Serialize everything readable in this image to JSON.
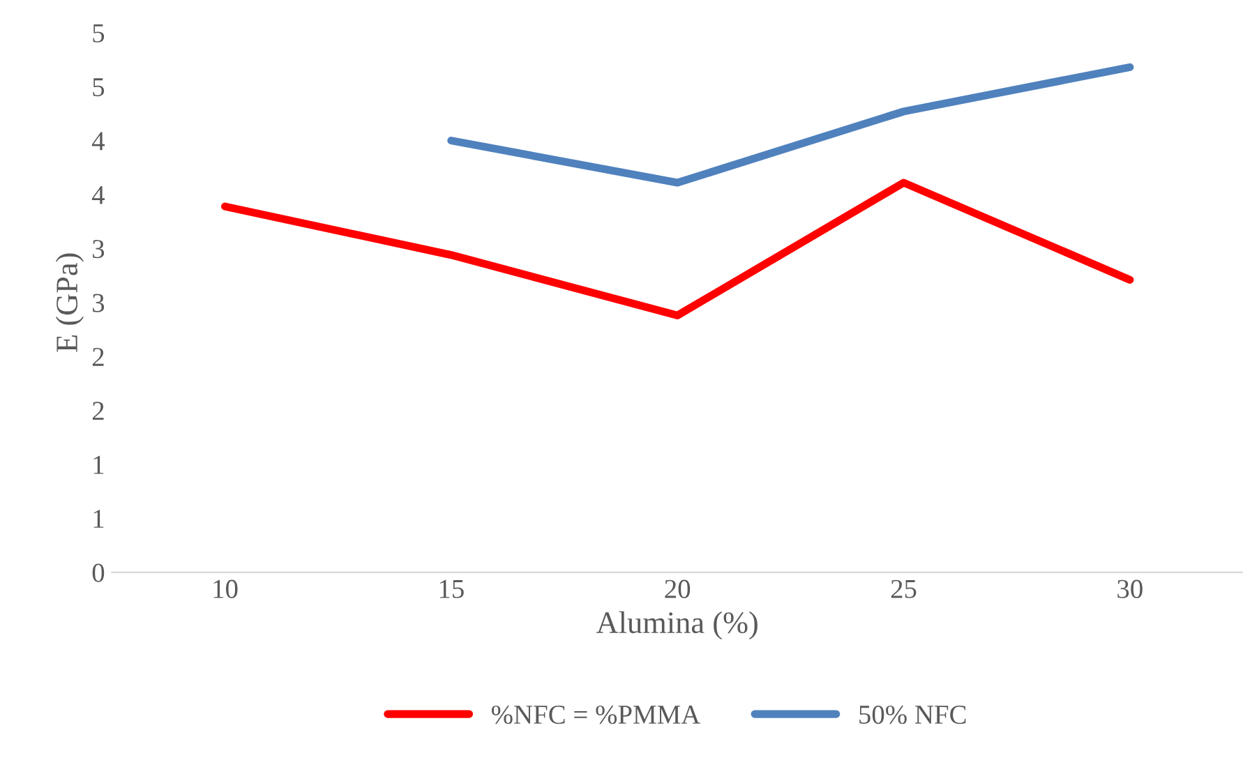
{
  "chart_data": {
    "type": "line",
    "xlabel": "Alumina (%)",
    "ylabel": "E (GPa)",
    "categories": [
      "10",
      "15",
      "20",
      "25",
      "30"
    ],
    "series": [
      {
        "name": "%NFC = %PMMA",
        "color": "#ff0000",
        "values": [
          3.39,
          2.94,
          2.38,
          3.61,
          2.71
        ]
      },
      {
        "name": "50% NFC",
        "color": "#4f81bd",
        "values": [
          null,
          4.0,
          3.61,
          4.27,
          4.68
        ]
      }
    ],
    "ylim": [
      0,
      5
    ],
    "yticks": [
      0,
      {
        "value": 0.5,
        "label": "1"
      },
      1,
      {
        "value": 1.5,
        "label": "2"
      },
      2,
      {
        "value": 2.5,
        "label": "3"
      },
      3,
      {
        "value": 3.5,
        "label": "4"
      },
      4,
      {
        "value": 4.5,
        "label": "5"
      },
      5
    ],
    "grid": false,
    "legend": "bottom",
    "marker": "none",
    "line_style": "solid"
  }
}
